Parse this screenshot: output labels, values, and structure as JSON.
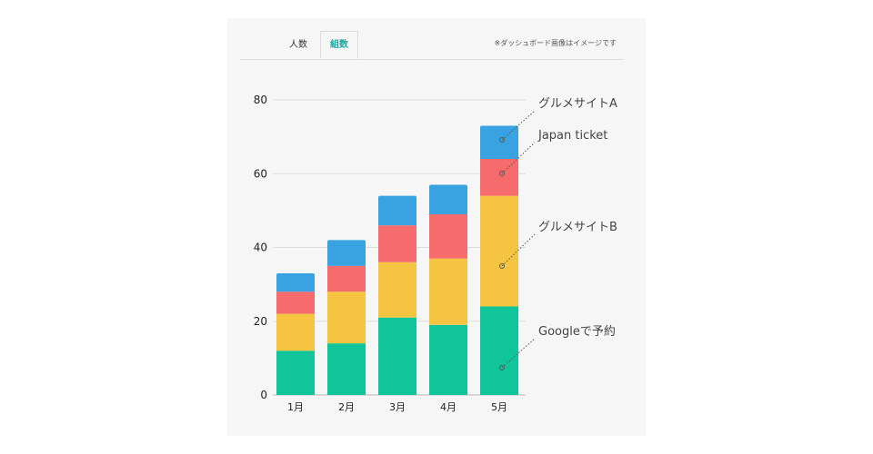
{
  "tabs": {
    "people": "人数",
    "groups": "組数"
  },
  "note": "※ダッシュボード画像はイメージです",
  "colors": {
    "Googleで予約": "#10c59a",
    "グルメサイトB": "#f5c542",
    "Japan ticket": "#f66b6b",
    "グルメサイトA": "#38a3e0"
  },
  "chart_data": {
    "type": "bar",
    "stacked": true,
    "categories": [
      "1月",
      "2月",
      "3月",
      "4月",
      "5月"
    ],
    "series": [
      {
        "name": "Googleで予約",
        "values": [
          12,
          14,
          21,
          19,
          24
        ]
      },
      {
        "name": "グルメサイトB",
        "values": [
          10,
          14,
          15,
          18,
          30
        ]
      },
      {
        "name": "Japan ticket",
        "values": [
          6,
          7,
          10,
          12,
          10
        ]
      },
      {
        "name": "グルメサイトA",
        "values": [
          5,
          7,
          8,
          8,
          9
        ]
      }
    ],
    "ylim": [
      0,
      80
    ],
    "yticks": [
      "0",
      "20",
      "40",
      "60",
      "80"
    ],
    "grid": true,
    "legend": "right"
  }
}
